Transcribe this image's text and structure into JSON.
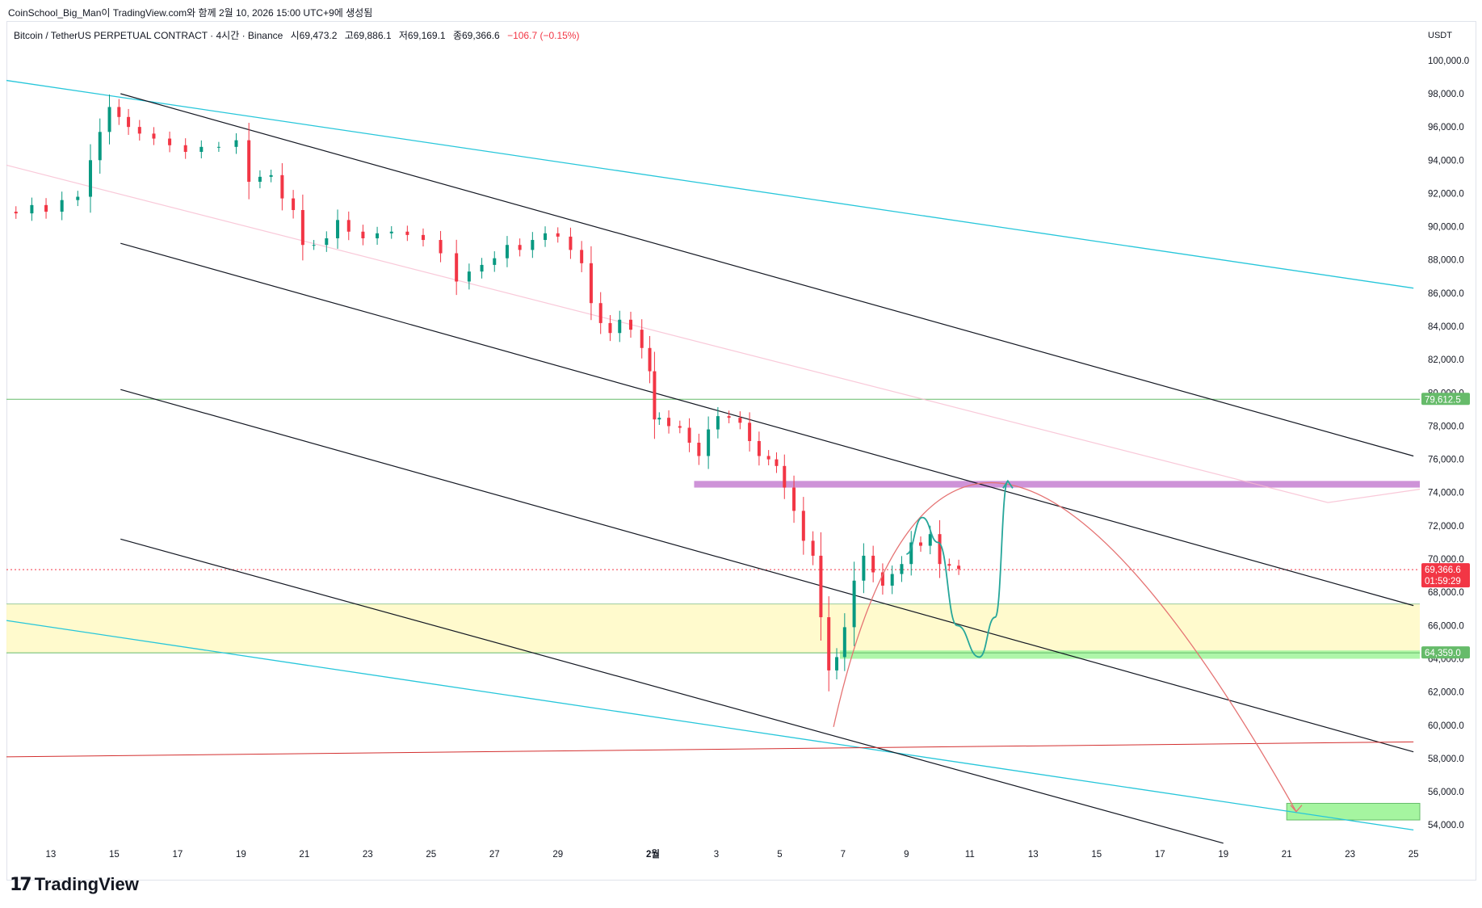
{
  "header": {
    "creator": "CoinSchool_Big_Man이 TradingView.com와 함께 2월 10, 2026 15:00 UTC+9에 생성됨"
  },
  "legend": {
    "symbol": "Bitcoin / TetherUS PERPETUAL CONTRACT · 4시간 · Binance",
    "open": "시69,473.2",
    "high": "고69,886.1",
    "low": "저69,169.1",
    "close": "종69,366.6",
    "change": "−106.7 (−0.15%)"
  },
  "currency": "USDT",
  "brand": {
    "mark": "17",
    "name": "TradingView"
  },
  "colors": {
    "up": "#089981",
    "down": "#f23645",
    "channel": "#131722",
    "outer_channel": "#26c6da",
    "support_zone": "#fff9c4",
    "resistance_band": "#ce93d8",
    "target_zone": "#a5f5a0",
    "level_line": "#66bb6a",
    "projection_red": "#e57373",
    "projection_teal": "#26a69a"
  },
  "chart_data": {
    "type": "candlestick",
    "timeframe": "4시간",
    "ylim": [
      52600,
      101500
    ],
    "y_ticks": [
      54000,
      56000,
      58000,
      60000,
      62000,
      64000,
      66000,
      68000,
      70000,
      72000,
      74000,
      76000,
      78000,
      80000,
      82000,
      84000,
      86000,
      88000,
      90000,
      92000,
      94000,
      96000,
      98000,
      100000
    ],
    "y_tick_labels": [
      "54,000.0",
      "56,000.0",
      "58,000.0",
      "60,000.0",
      "62,000.0",
      "64,000.0",
      "66,000.0",
      "68,000.0",
      "70,000.0",
      "72,000.0",
      "74,000.0",
      "76,000.0",
      "78,000.0",
      "80,000.0",
      "82,000.0",
      "84,000.0",
      "86,000.0",
      "88,000.0",
      "90,000.0",
      "92,000.0",
      "94,000.0",
      "96,000.0",
      "98,000.0",
      "100,000.0"
    ],
    "x_range_days": [
      11.6,
      56.2
    ],
    "x_ticks": [
      {
        "day": 13,
        "label": "13"
      },
      {
        "day": 15,
        "label": "15"
      },
      {
        "day": 17,
        "label": "17"
      },
      {
        "day": 19,
        "label": "19"
      },
      {
        "day": 21,
        "label": "21"
      },
      {
        "day": 23,
        "label": "23"
      },
      {
        "day": 25,
        "label": "25"
      },
      {
        "day": 27,
        "label": "27"
      },
      {
        "day": 29,
        "label": "29"
      },
      {
        "day": 32,
        "label": "2월"
      },
      {
        "day": 34,
        "label": "3"
      },
      {
        "day": 36,
        "label": "5"
      },
      {
        "day": 38,
        "label": "7"
      },
      {
        "day": 40,
        "label": "9"
      },
      {
        "day": 42,
        "label": "11"
      },
      {
        "day": 44,
        "label": "13"
      },
      {
        "day": 46,
        "label": "15"
      },
      {
        "day": 48,
        "label": "17"
      },
      {
        "day": 50,
        "label": "19"
      },
      {
        "day": 52,
        "label": "21"
      },
      {
        "day": 54,
        "label": "23"
      },
      {
        "day": 56,
        "label": "25"
      }
    ],
    "price_path": [
      [
        11.6,
        90900
      ],
      [
        12.2,
        90800
      ],
      [
        12.6,
        91300
      ],
      [
        13.1,
        90900
      ],
      [
        13.6,
        91600
      ],
      [
        14.1,
        91800
      ],
      [
        14.4,
        94000
      ],
      [
        14.7,
        95700
      ],
      [
        15.0,
        97200
      ],
      [
        15.3,
        96600
      ],
      [
        15.6,
        96000
      ],
      [
        16.0,
        95600
      ],
      [
        16.5,
        95300
      ],
      [
        17.0,
        94900
      ],
      [
        17.5,
        94500
      ],
      [
        18.0,
        94800
      ],
      [
        18.6,
        94800
      ],
      [
        19.1,
        95200
      ],
      [
        19.4,
        92700
      ],
      [
        19.8,
        93000
      ],
      [
        20.1,
        93100
      ],
      [
        20.5,
        91700
      ],
      [
        20.8,
        91000
      ],
      [
        21.1,
        88900
      ],
      [
        21.5,
        88900
      ],
      [
        21.9,
        89300
      ],
      [
        22.2,
        90400
      ],
      [
        22.6,
        89700
      ],
      [
        23.1,
        89300
      ],
      [
        23.5,
        89600
      ],
      [
        24.0,
        89700
      ],
      [
        24.5,
        89500
      ],
      [
        25.0,
        89200
      ],
      [
        25.6,
        88400
      ],
      [
        26.0,
        86700
      ],
      [
        26.4,
        87300
      ],
      [
        26.8,
        87700
      ],
      [
        27.2,
        88100
      ],
      [
        27.6,
        88900
      ],
      [
        28.0,
        88600
      ],
      [
        28.4,
        89200
      ],
      [
        28.8,
        89600
      ],
      [
        29.2,
        89400
      ],
      [
        29.6,
        88600
      ],
      [
        29.9,
        87800
      ],
      [
        30.2,
        85400
      ],
      [
        30.5,
        84200
      ],
      [
        30.8,
        83600
      ],
      [
        31.1,
        84400
      ],
      [
        31.5,
        83800
      ],
      [
        31.8,
        82700
      ],
      [
        32.0,
        81300
      ],
      [
        32.1,
        78400
      ],
      [
        32.3,
        78500
      ],
      [
        32.7,
        78000
      ],
      [
        33.0,
        77900
      ],
      [
        33.3,
        77000
      ],
      [
        33.6,
        76200
      ],
      [
        33.9,
        77800
      ],
      [
        34.2,
        78600
      ],
      [
        34.6,
        78500
      ],
      [
        34.9,
        78200
      ],
      [
        35.2,
        77100
      ],
      [
        35.5,
        76200
      ],
      [
        35.8,
        76000
      ],
      [
        36.0,
        75600
      ],
      [
        36.3,
        74300
      ],
      [
        36.6,
        72900
      ],
      [
        36.9,
        71100
      ],
      [
        37.2,
        70200
      ],
      [
        37.4,
        66500
      ],
      [
        37.7,
        63300
      ],
      [
        37.9,
        64100
      ],
      [
        38.2,
        65900
      ],
      [
        38.5,
        68700
      ],
      [
        38.8,
        70200
      ],
      [
        39.1,
        69200
      ],
      [
        39.4,
        68400
      ],
      [
        39.7,
        69100
      ],
      [
        40.0,
        69700
      ],
      [
        40.3,
        71000
      ],
      [
        40.6,
        70800
      ],
      [
        40.9,
        71500
      ],
      [
        41.2,
        69700
      ],
      [
        41.5,
        69600
      ],
      [
        41.8,
        69400
      ]
    ],
    "high_volume_spikes_note": "",
    "levels": [
      {
        "price": 79612.5,
        "label": "79,612.5",
        "tag_color": "#66bb6a"
      },
      {
        "price": 69366.6,
        "label": "69,366.6",
        "countdown": "01:59:29",
        "tag_color": "#f23645"
      },
      {
        "price": 64359.0,
        "label": "64,359.0",
        "tag_color": "#66bb6a"
      }
    ],
    "zones": {
      "yellow_support": [
        64359,
        67300
      ],
      "purple_resistance": [
        74300,
        74700
      ],
      "green_band": [
        64000,
        64500
      ],
      "target_box": [
        54300,
        55300
      ]
    },
    "channel_lines": [
      {
        "name": "outer-top",
        "from": [
          11.6,
          98800
        ],
        "to": [
          56.0,
          86300
        ]
      },
      {
        "name": "outer-bottom",
        "from": [
          11.6,
          66300
        ],
        "to": [
          56.0,
          53700
        ]
      },
      {
        "name": "ch1-top",
        "from": [
          15.2,
          98000
        ],
        "to": [
          56.0,
          76200
        ]
      },
      {
        "name": "ch1-bottom",
        "from": [
          15.2,
          89000
        ],
        "to": [
          56.0,
          67200
        ]
      },
      {
        "name": "ch2-top",
        "from": [
          15.2,
          80200
        ],
        "to": [
          56.0,
          58400
        ]
      },
      {
        "name": "ch2-bottom",
        "from": [
          15.2,
          71200
        ],
        "to": [
          50.0,
          52900
        ]
      },
      {
        "name": "long-red",
        "from": [
          11.6,
          58100
        ],
        "to": [
          56.0,
          59000
        ]
      }
    ],
    "projections": {
      "red_arc_start": [
        37.7,
        59900
      ],
      "red_arc_peak": [
        43.2,
        74500
      ],
      "red_arc_end": [
        52.3,
        54800
      ],
      "teal_path": [
        [
          40.0,
          70300
        ],
        [
          40.5,
          72500
        ],
        [
          41.0,
          71000
        ],
        [
          41.6,
          66000
        ],
        [
          42.3,
          64100
        ],
        [
          42.8,
          66500
        ],
        [
          43.2,
          74700
        ]
      ]
    }
  }
}
